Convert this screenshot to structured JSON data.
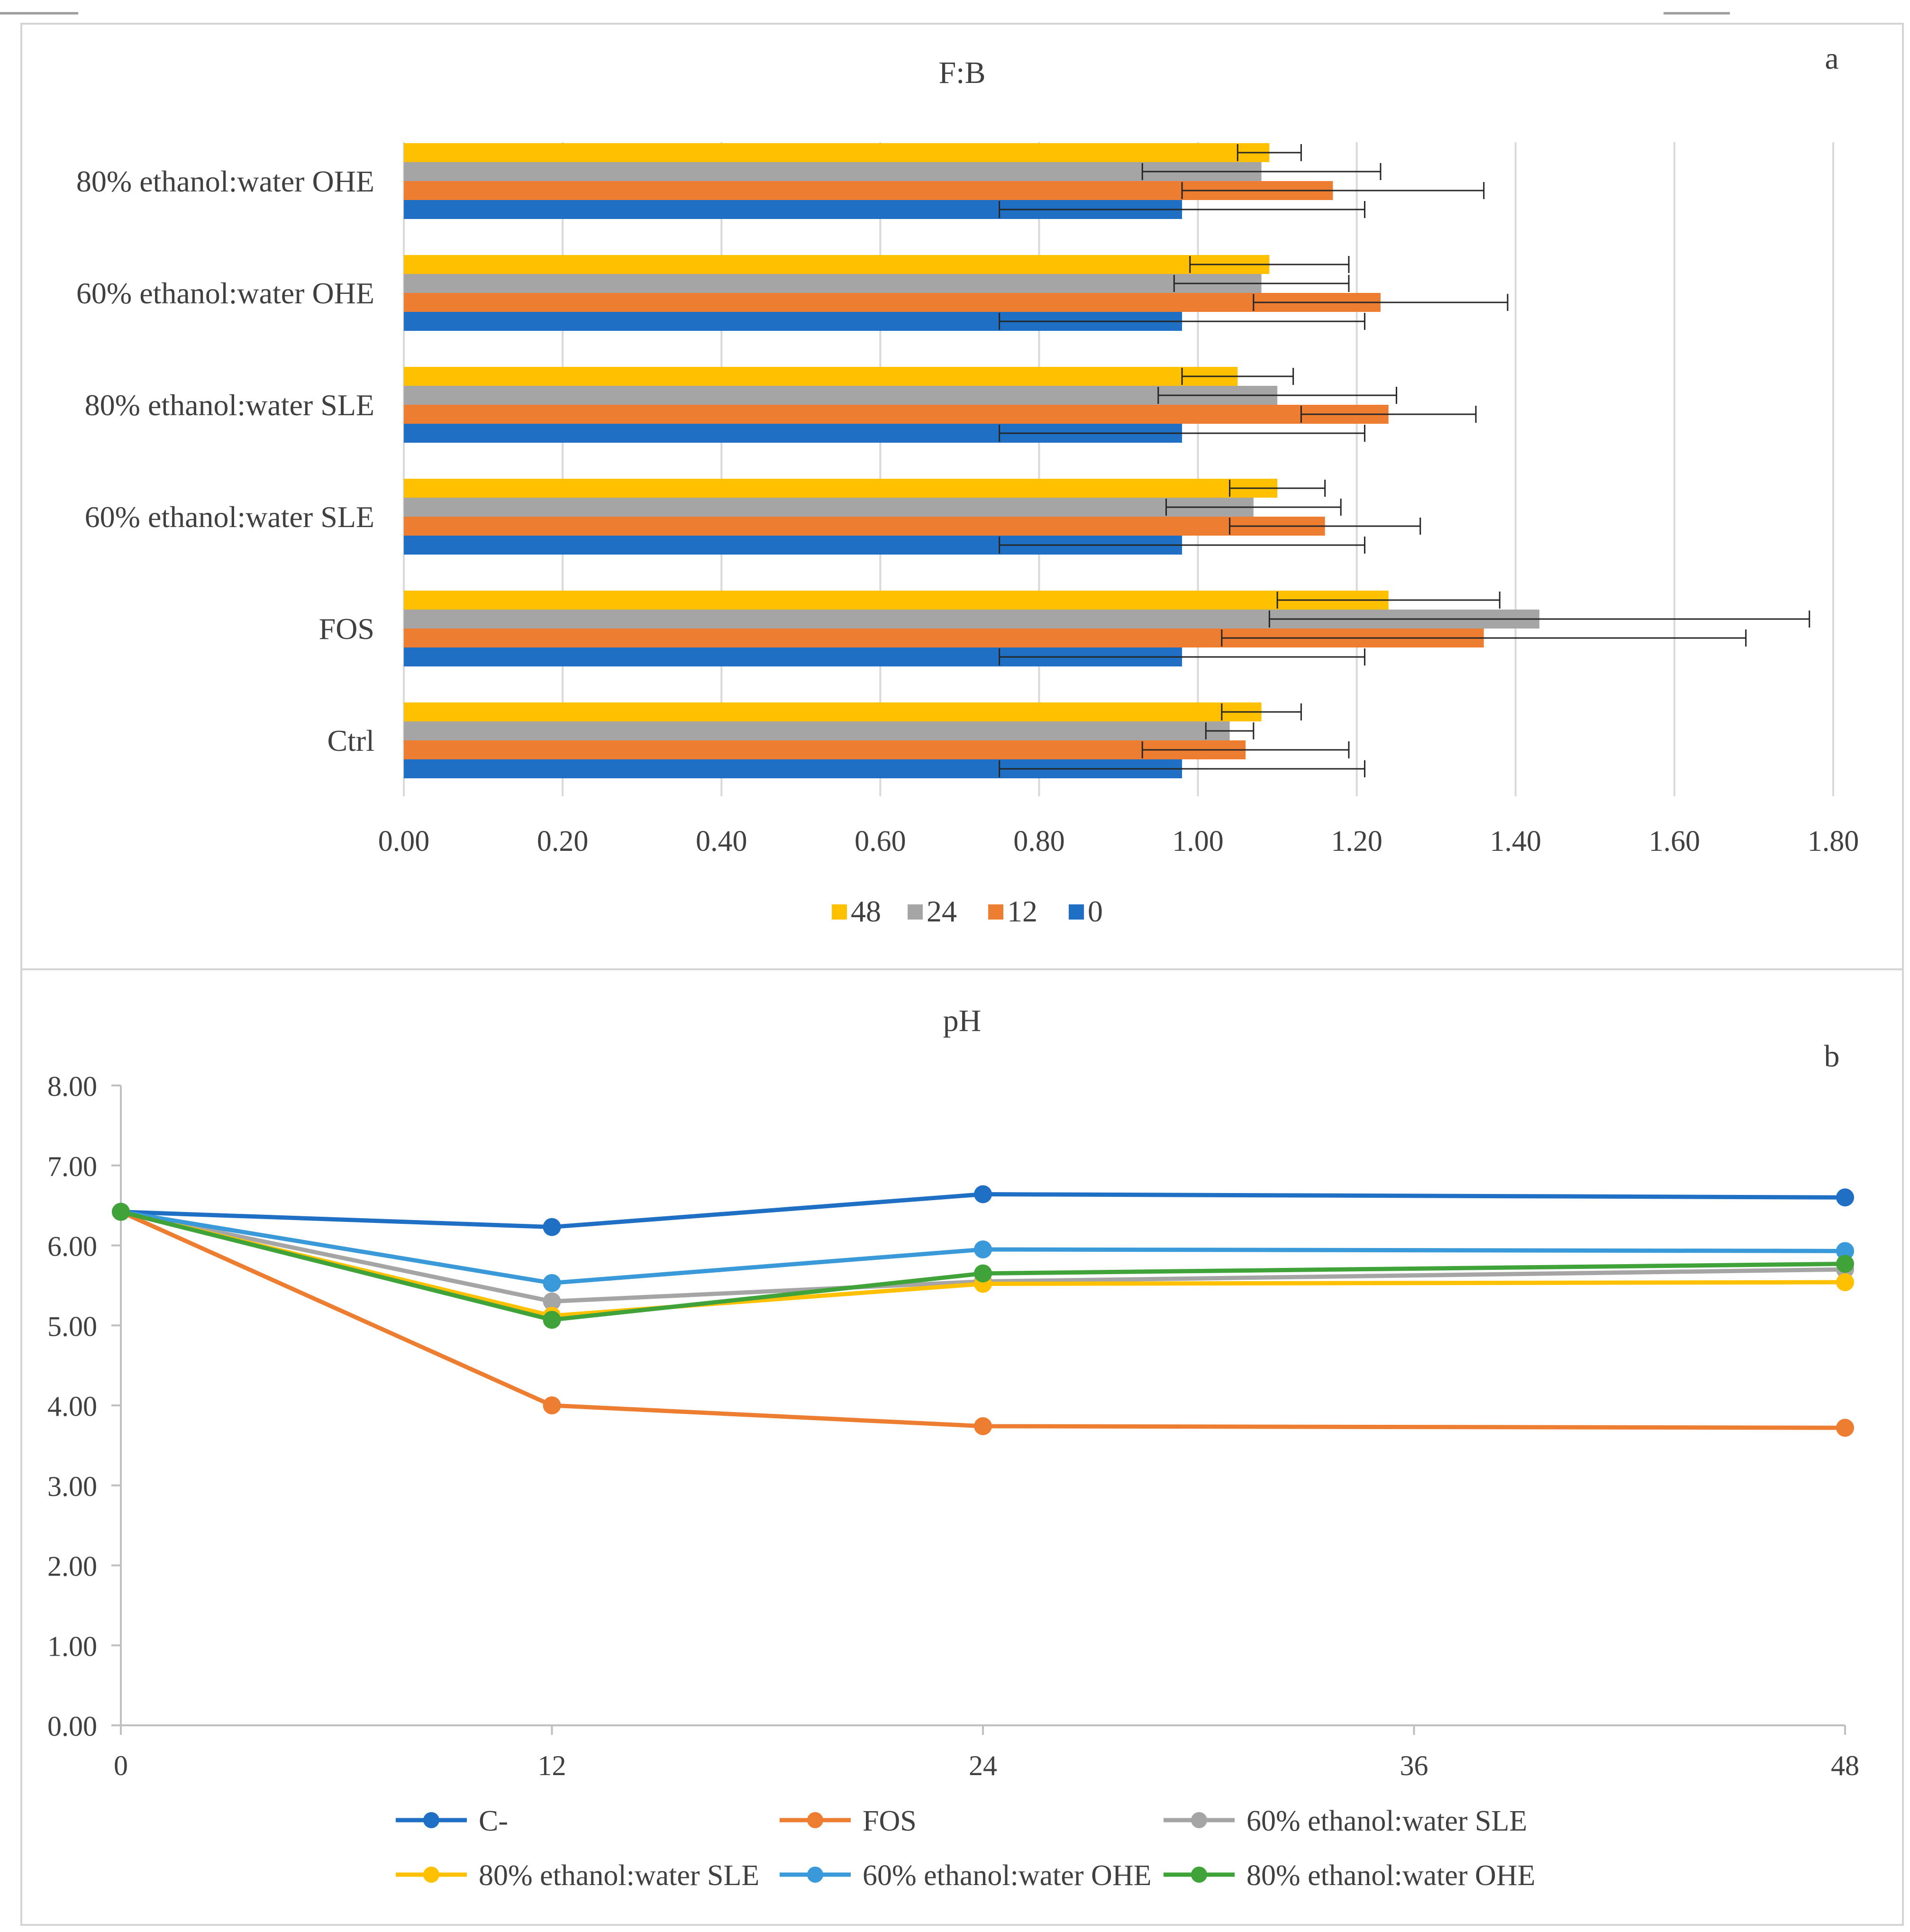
{
  "chart_data": [
    {
      "type": "bar",
      "orientation": "horizontal",
      "title": "F:B",
      "panel_label": "a",
      "categories": [
        "Ctrl",
        "FOS",
        "60% ethanol:water SLE",
        "80% ethanol:water SLE",
        "60% ethanol:water OHE",
        "80% ethanol:water OHE"
      ],
      "series": [
        {
          "name": "48",
          "color": "#FFC000",
          "values": [
            1.08,
            1.24,
            1.1,
            1.05,
            1.09,
            1.09
          ],
          "errors": [
            0.05,
            0.14,
            0.06,
            0.07,
            0.1,
            0.04
          ]
        },
        {
          "name": "24",
          "color": "#A5A5A5",
          "values": [
            1.04,
            1.43,
            1.07,
            1.1,
            1.08,
            1.08
          ],
          "errors": [
            0.03,
            0.34,
            0.11,
            0.15,
            0.11,
            0.15
          ]
        },
        {
          "name": "12",
          "color": "#ED7D31",
          "values": [
            1.06,
            1.36,
            1.16,
            1.24,
            1.23,
            1.17
          ],
          "errors": [
            0.13,
            0.33,
            0.12,
            0.11,
            0.16,
            0.19
          ]
        },
        {
          "name": "0",
          "color": "#1F6FC5",
          "values": [
            0.98,
            0.98,
            0.98,
            0.98,
            0.98,
            0.98
          ],
          "errors": [
            0.23,
            0.23,
            0.23,
            0.23,
            0.23,
            0.23
          ]
        }
      ],
      "xlim": [
        0,
        1.8
      ],
      "xticks": [
        "0.00",
        "0.20",
        "0.40",
        "0.60",
        "0.80",
        "1.00",
        "1.20",
        "1.40",
        "1.60",
        "1.80"
      ],
      "grid": "vertical",
      "legend_position": "bottom"
    },
    {
      "type": "line",
      "title": "pH",
      "panel_label": "b",
      "x": [
        0,
        12,
        24,
        48
      ],
      "series": [
        {
          "name": "C-",
          "color": "#1F6FC5",
          "values": [
            6.42,
            6.23,
            6.64,
            6.6
          ]
        },
        {
          "name": "FOS",
          "color": "#ED7D31",
          "values": [
            6.42,
            4.0,
            3.74,
            3.72
          ]
        },
        {
          "name": "60% ethanol:water SLE",
          "color": "#A5A5A5",
          "values": [
            6.42,
            5.3,
            5.55,
            5.7
          ]
        },
        {
          "name": "80% ethanol:water SLE",
          "color": "#FFC000",
          "values": [
            6.42,
            5.12,
            5.52,
            5.54
          ]
        },
        {
          "name": "60% ethanol:water OHE",
          "color": "#3A9AD9",
          "values": [
            6.42,
            5.53,
            5.95,
            5.93
          ]
        },
        {
          "name": "80% ethanol:water OHE",
          "color": "#3FA33A",
          "values": [
            6.42,
            5.07,
            5.65,
            5.77
          ]
        }
      ],
      "ylim": [
        0,
        8
      ],
      "yticks": [
        "0.00",
        "1.00",
        "2.00",
        "3.00",
        "4.00",
        "5.00",
        "6.00",
        "7.00",
        "8.00"
      ],
      "xlim": [
        0,
        48
      ],
      "xticks": [
        "0",
        "12",
        "24",
        "36",
        "48"
      ],
      "grid": "none",
      "legend_position": "bottom"
    }
  ]
}
